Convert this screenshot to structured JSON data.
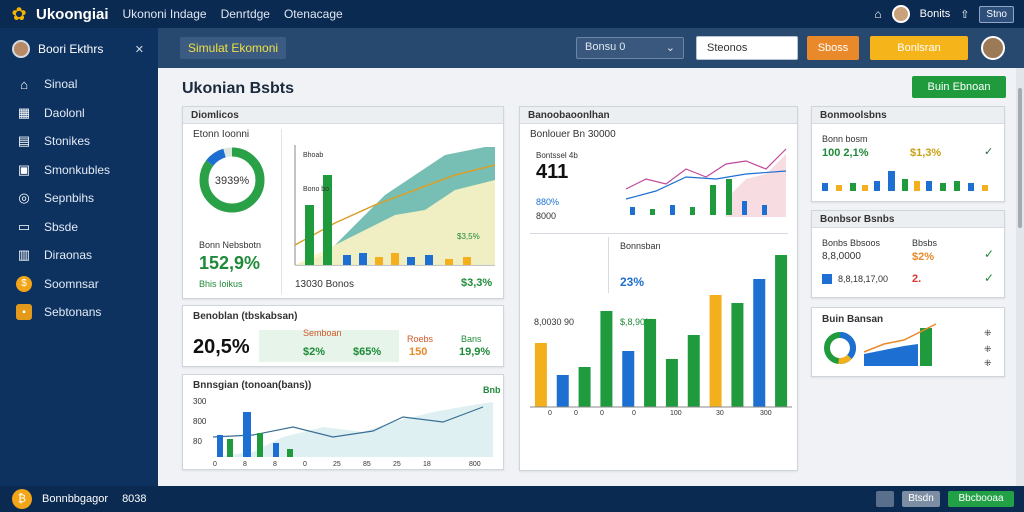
{
  "topbar": {
    "brand": "Ukoongiai",
    "nav": [
      "Ukononi Indage",
      "Denrtdge",
      "Otenacage"
    ],
    "user": "Bonits",
    "button": "Stno"
  },
  "sidebar": {
    "user": "Boori Ekthrs",
    "items": [
      {
        "label": "Sinoal",
        "icon": "home-icon"
      },
      {
        "label": "Daolonl",
        "icon": "dashboard-icon"
      },
      {
        "label": "Stonikes",
        "icon": "chart-icon"
      },
      {
        "label": "Smonkubles",
        "icon": "inbox-icon"
      },
      {
        "label": "Sepnbihs",
        "icon": "target-icon"
      },
      {
        "label": "Sbsde",
        "icon": "folder-icon"
      },
      {
        "label": "Diraonas",
        "icon": "calendar-icon"
      },
      {
        "label": "Soomnsar",
        "icon": "coin-icon"
      },
      {
        "label": "Sebtonans",
        "icon": "briefcase-icon"
      }
    ]
  },
  "header": {
    "title": "Simulat Ekomoni",
    "select": "Bonsu 0",
    "search": "Steonos",
    "btn_orange": "Sboss",
    "btn_yellow": "Bonlsran"
  },
  "main": {
    "title": "Ukonian Bsbts",
    "action": "Buin Ebnoan"
  },
  "card1": {
    "title": "Diomlicos",
    "sub": "Etonn Ioonni",
    "donut": "3939%",
    "mid_label": "Bonn Nebsbotn",
    "big": "152,9%",
    "small": "Bhis Ioikus",
    "chart_label": "Bhoab",
    "chart_label2": "Bono bo",
    "x_label": "13030 Bonos",
    "pct": "$3,3%",
    "pct2": "$3,5%"
  },
  "card2": {
    "title": "Benoblan (tbskabsan)",
    "big": "20,5%",
    "labels": [
      "Semboan",
      "Roebs",
      "Bans"
    ],
    "values": [
      "$2%",
      "$65%",
      "150",
      "19,9%"
    ]
  },
  "card3": {
    "title": "Bnnsgian (tonoan(bans))",
    "badge": "Bnb",
    "yticks": [
      "300",
      "800",
      "80"
    ],
    "xticks": [
      "0",
      "8",
      "8",
      "0",
      "25",
      "85",
      "25",
      "18",
      "800"
    ]
  },
  "card4": {
    "title": "Banoobaoonlhan",
    "sub": "Bonlouer Bn 30000",
    "l1": "Bontssel 4b",
    "big": "411",
    "v1": "880%",
    "v2": "8000",
    "l2": "Bonnsban",
    "big2": "23%",
    "l3": "8,0030 90",
    "l4": "$,8,90%",
    "xticks": [
      "0",
      "0",
      "0",
      "0",
      "100",
      "30",
      "300"
    ]
  },
  "card5": {
    "title": "Bonmoolsbns",
    "sub": "Bonn bosm",
    "v1": "100 2,1%",
    "v2": "$1,3%"
  },
  "card6": {
    "title": "Bonbsor Bsnbs",
    "l1": "Bonbs Bbsoos",
    "l2": "Bbsbs",
    "v1": "8,8,0000",
    "v2": "$2%",
    "v3": "8,8,18,17,00",
    "v4": "2."
  },
  "card7": {
    "title": "Buin Bansan"
  },
  "footer": {
    "label": "Bonnbbgagor",
    "count": "8038",
    "btn2": "Btsdn",
    "btn3": "Bbcbooaa"
  },
  "chart_data": {
    "type": "bar",
    "categories": [
      "1",
      "2",
      "3",
      "4",
      "5",
      "6",
      "7",
      "8",
      "9",
      "10",
      "11",
      "12"
    ],
    "series": [
      {
        "values": [
          40,
          20,
          25,
          60,
          35,
          55,
          30,
          45,
          70,
          65,
          80,
          95
        ]
      }
    ]
  },
  "colors": {
    "accent": "#1f9b3e",
    "blue": "#1d6fd1",
    "yellow": "#f3b01c",
    "green": "#1f9b3e",
    "teal": "#3aa89a"
  }
}
